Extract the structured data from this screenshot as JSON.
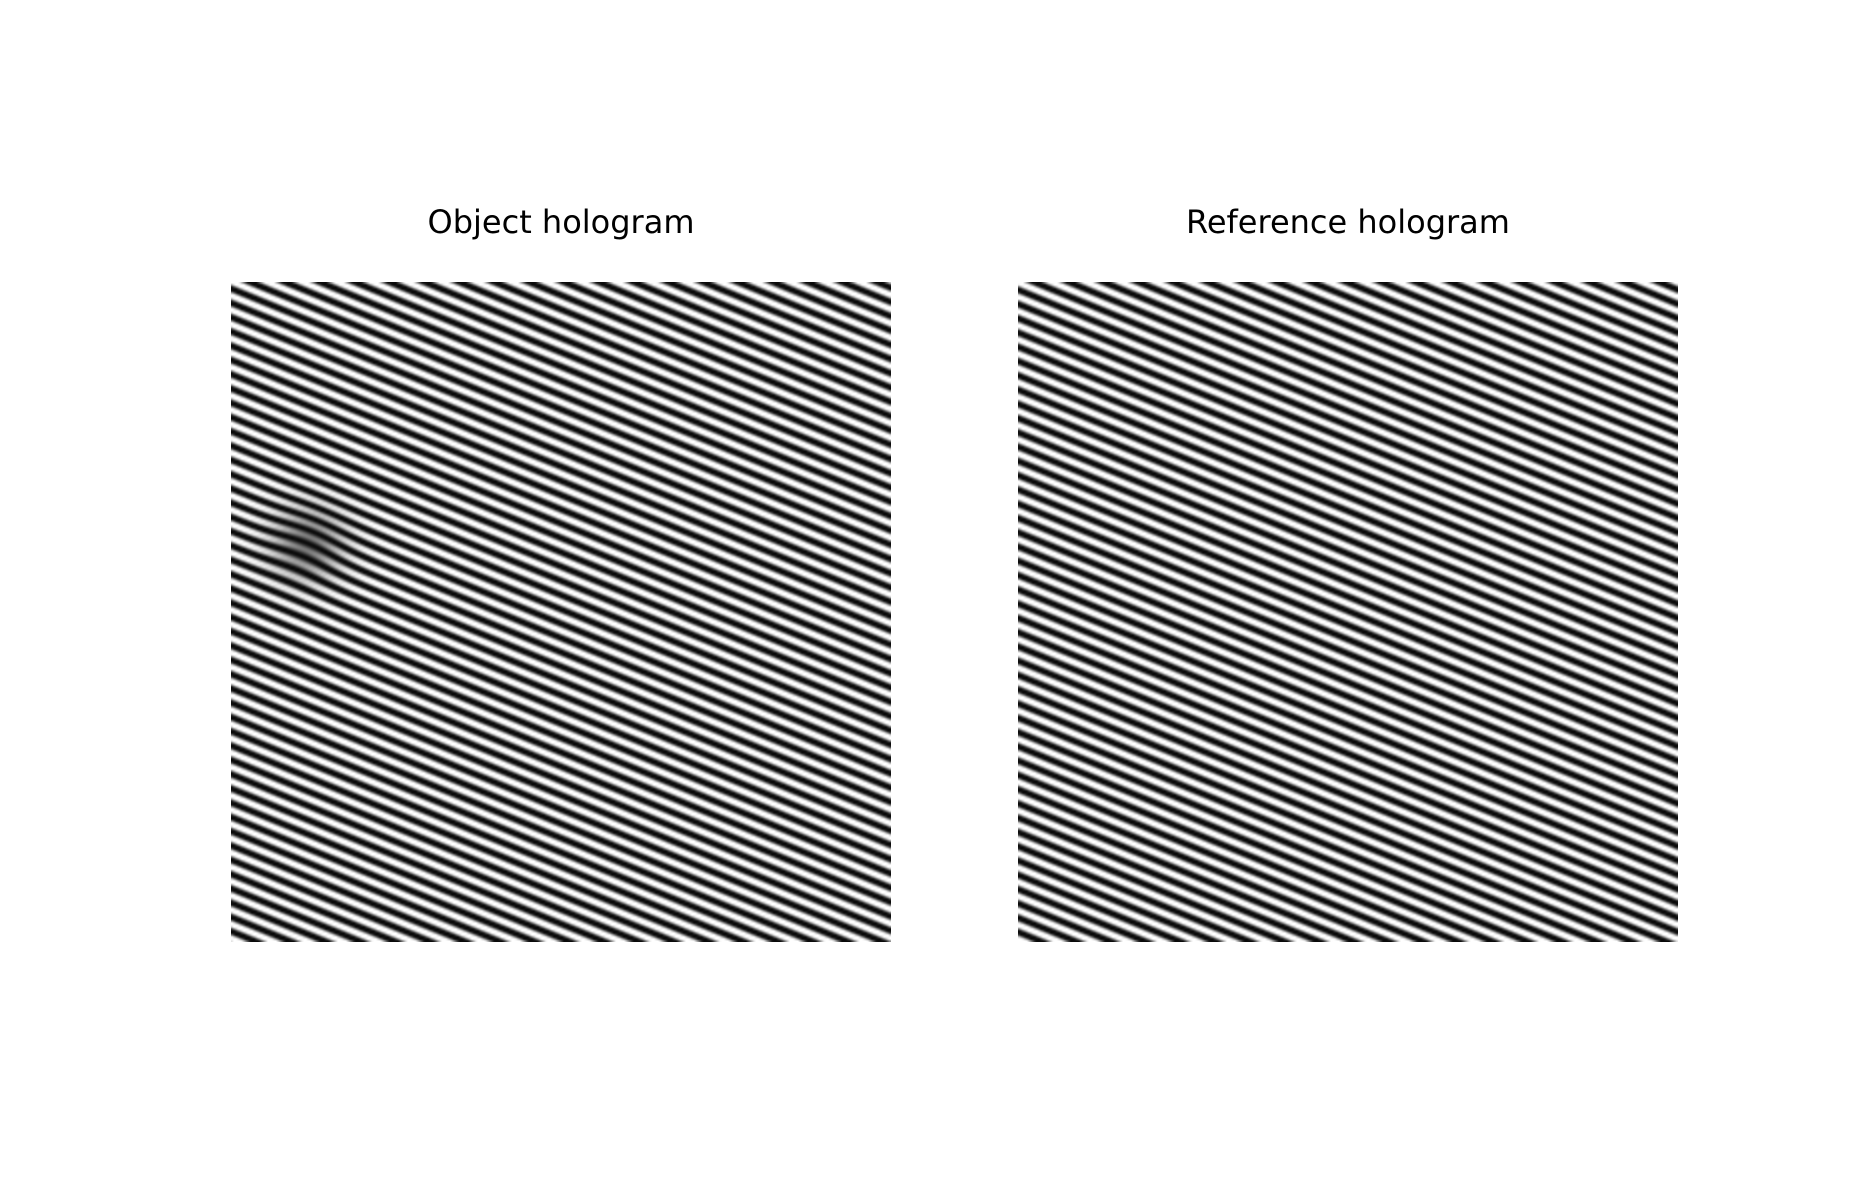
{
  "figure": {
    "panels": [
      {
        "id": "object",
        "title": "Object hologram",
        "fringe_color_dark": "#0a0a0a",
        "fringe_color_light": "#ffffff",
        "has_object_blur": true
      },
      {
        "id": "reference",
        "title": "Reference hologram",
        "fringe_color_dark": "#0a0a0a",
        "fringe_color_light": "#ffffff",
        "has_object_blur": false
      }
    ]
  }
}
